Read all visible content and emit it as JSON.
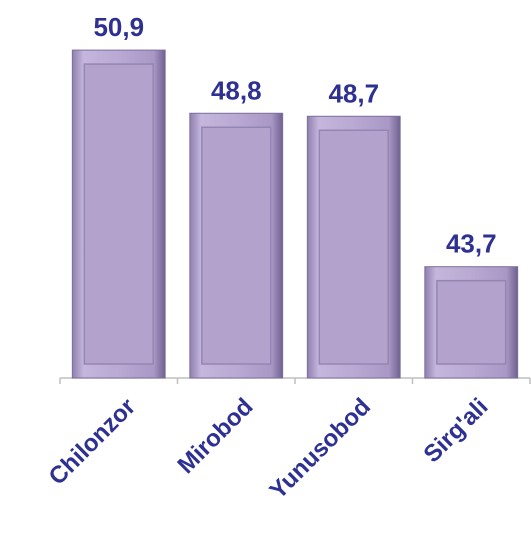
{
  "chart_data": {
    "type": "bar",
    "categories": [
      "Chilonzor",
      "Mirobod",
      "Yunusobod",
      "Sirg'ali"
    ],
    "values": [
      50.9,
      48.8,
      48.7,
      43.7
    ],
    "value_labels": [
      "50,9",
      "48,8",
      "48,7",
      "43,7"
    ],
    "color": "#b3a3cc",
    "ylim": [
      40,
      52
    ]
  }
}
